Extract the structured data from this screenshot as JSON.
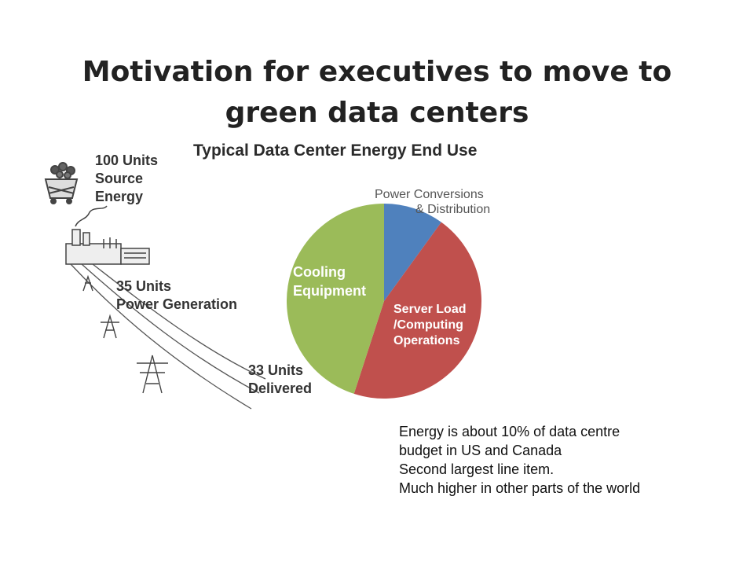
{
  "slide": {
    "title_lines": [
      "Motivation for executives to move to",
      "green data centers"
    ]
  },
  "energy_flow": {
    "source": [
      "100 Units",
      "Source",
      "Energy"
    ],
    "generation": [
      "35 Units",
      "Power Generation"
    ],
    "delivered": [
      "33 Units",
      "Delivered"
    ]
  },
  "chart_data": {
    "type": "pie",
    "title": "Typical Data Center Energy End Use",
    "slices": [
      {
        "label_lines": [
          "Power Conversions",
          "& Distribution"
        ],
        "value": 10,
        "color": "#4f81bd"
      },
      {
        "label_lines": [
          "Server Load",
          "/Computing",
          "Operations"
        ],
        "value": 45,
        "color": "#c0504d"
      },
      {
        "label_lines": [
          "Cooling",
          "Equipment"
        ],
        "value": 45,
        "color": "#9bbb59"
      }
    ]
  },
  "notes": [
    "Energy is about 10% of data centre",
    "budget in US and Canada",
    "Second largest line item.",
    "Much higher in other parts of the world"
  ],
  "icons": [
    "coal-cart-icon",
    "power-plant-icon",
    "transmission-tower-icon"
  ]
}
